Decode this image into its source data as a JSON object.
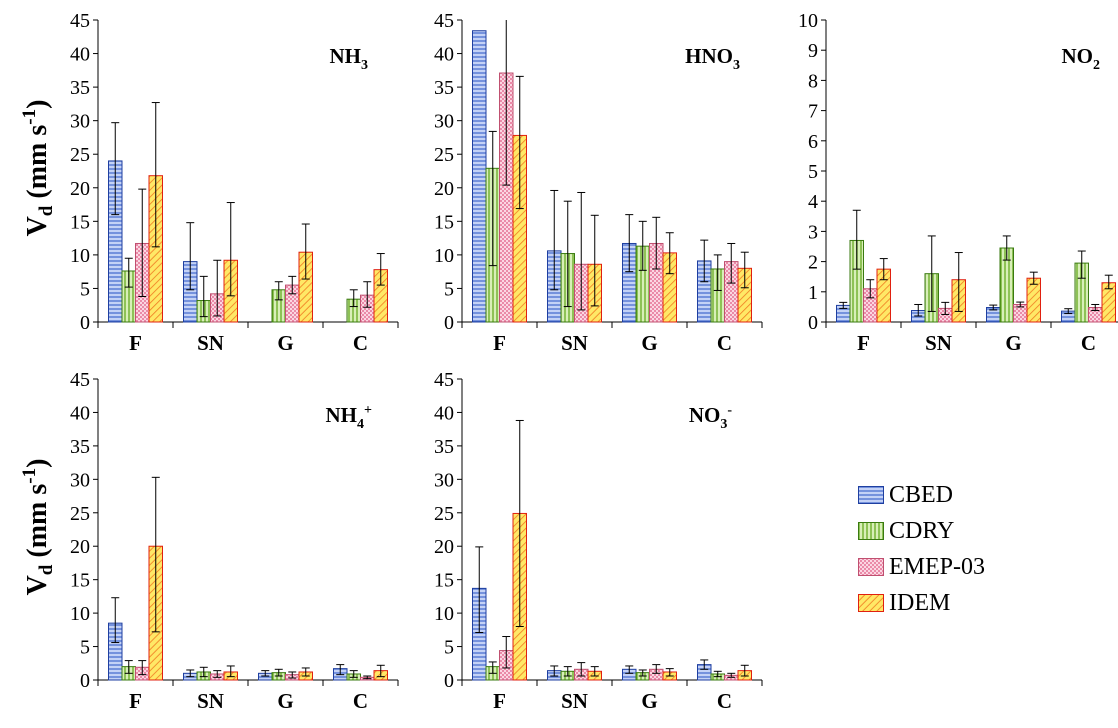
{
  "y_axis_label": {
    "main": "V",
    "sub": "d",
    "unit": " (mm s",
    "exp": "-1",
    "close": ")"
  },
  "legend": [
    {
      "name": "CBED",
      "color": "#4a70d0",
      "pattern": "hlines"
    },
    {
      "name": "CDRY",
      "color": "#66aa22",
      "pattern": "vlines"
    },
    {
      "name": "EMEP-03",
      "color": "#e07090",
      "pattern": "check"
    },
    {
      "name": "IDEM",
      "color": "#f03010",
      "pattern": "diag"
    }
  ],
  "chart_data": [
    {
      "type": "bar",
      "title_base": "NH",
      "title_sub": "3",
      "title_sup": "",
      "categories": [
        "F",
        "SN",
        "G",
        "C"
      ],
      "ylim": [
        0,
        45
      ],
      "yticks": [
        0,
        5,
        10,
        15,
        20,
        25,
        30,
        35,
        40,
        45
      ],
      "series": [
        {
          "name": "CBED",
          "values": [
            24.0,
            9.0,
            0,
            0
          ],
          "err_low": [
            16.0,
            4.8,
            0,
            0
          ],
          "err_high": [
            29.7,
            14.8,
            0,
            0
          ]
        },
        {
          "name": "CDRY",
          "values": [
            7.6,
            3.2,
            4.8,
            3.4
          ],
          "err_low": [
            5.2,
            0.8,
            3.3,
            2.3
          ],
          "err_high": [
            9.5,
            6.8,
            6.0,
            4.8
          ]
        },
        {
          "name": "EMEP-03",
          "values": [
            11.7,
            4.2,
            5.5,
            4.0
          ],
          "err_low": [
            3.8,
            0.9,
            4.2,
            2.2
          ],
          "err_high": [
            19.8,
            9.2,
            6.8,
            6.0
          ]
        },
        {
          "name": "IDEM",
          "values": [
            21.8,
            9.2,
            10.4,
            7.8
          ],
          "err_low": [
            11.2,
            3.9,
            6.4,
            5.5
          ],
          "err_high": [
            32.7,
            17.8,
            14.6,
            10.2
          ]
        }
      ]
    },
    {
      "type": "bar",
      "title_base": "HNO",
      "title_sub": "3",
      "title_sup": "",
      "categories": [
        "F",
        "SN",
        "G",
        "C"
      ],
      "ylim": [
        0,
        45
      ],
      "yticks": [
        0,
        5,
        10,
        15,
        20,
        25,
        30,
        35,
        40,
        45
      ],
      "series": [
        {
          "name": "CBED",
          "values": [
            43.4,
            10.6,
            11.7,
            9.1
          ],
          "err_low": [
            45,
            4.8,
            7.5,
            6.0
          ],
          "err_high": [
            45,
            19.6,
            16.0,
            12.2
          ]
        },
        {
          "name": "CDRY",
          "values": [
            22.9,
            10.2,
            11.3,
            7.9
          ],
          "err_low": [
            8.4,
            2.3,
            7.7,
            4.7
          ],
          "err_high": [
            28.4,
            18.0,
            15.0,
            10.0
          ]
        },
        {
          "name": "EMEP-03",
          "values": [
            37.1,
            8.6,
            11.7,
            9.0
          ],
          "err_low": [
            20.4,
            1.8,
            7.9,
            5.8
          ],
          "err_high": [
            45,
            19.3,
            15.6,
            11.7
          ]
        },
        {
          "name": "IDEM",
          "values": [
            27.8,
            8.6,
            10.3,
            8.0
          ],
          "err_low": [
            16.9,
            2.4,
            7.2,
            5.1
          ],
          "err_high": [
            36.6,
            15.9,
            13.3,
            10.4
          ]
        }
      ]
    },
    {
      "type": "bar",
      "title_base": "NO",
      "title_sub": "2",
      "title_sup": "",
      "categories": [
        "F",
        "SN",
        "G",
        "C"
      ],
      "ylim": [
        0,
        10
      ],
      "yticks": [
        0,
        1,
        2,
        3,
        4,
        5,
        6,
        7,
        8,
        9,
        10
      ],
      "series": [
        {
          "name": "CBED",
          "values": [
            0.55,
            0.38,
            0.48,
            0.36
          ],
          "err_low": [
            0.45,
            0.2,
            0.4,
            0.28
          ],
          "err_high": [
            0.65,
            0.58,
            0.56,
            0.44
          ]
        },
        {
          "name": "CDRY",
          "values": [
            2.7,
            1.6,
            2.45,
            1.95
          ],
          "err_low": [
            1.75,
            0.35,
            2.05,
            1.45
          ],
          "err_high": [
            3.7,
            2.85,
            2.85,
            2.35
          ]
        },
        {
          "name": "EMEP-03",
          "values": [
            1.1,
            0.45,
            0.58,
            0.48
          ],
          "err_low": [
            0.8,
            0.25,
            0.5,
            0.38
          ],
          "err_high": [
            1.4,
            0.65,
            0.66,
            0.58
          ]
        },
        {
          "name": "IDEM",
          "values": [
            1.75,
            1.4,
            1.45,
            1.3
          ],
          "err_low": [
            1.4,
            0.35,
            1.25,
            1.1
          ],
          "err_high": [
            2.1,
            2.3,
            1.65,
            1.55
          ]
        }
      ]
    },
    {
      "type": "bar",
      "title_base": "NH",
      "title_sub": "4",
      "title_sup": "+",
      "categories": [
        "F",
        "SN",
        "G",
        "C"
      ],
      "ylim": [
        0,
        45
      ],
      "yticks": [
        0,
        5,
        10,
        15,
        20,
        25,
        30,
        35,
        40,
        45
      ],
      "series": [
        {
          "name": "CBED",
          "values": [
            8.5,
            1.0,
            1.0,
            1.7
          ],
          "err_low": [
            5.6,
            0.5,
            0.6,
            0.8
          ],
          "err_high": [
            12.3,
            1.5,
            1.4,
            2.3
          ]
        },
        {
          "name": "CDRY",
          "values": [
            2.0,
            1.2,
            1.1,
            0.9
          ],
          "err_low": [
            1.0,
            0.5,
            0.6,
            0.4
          ],
          "err_high": [
            2.9,
            1.9,
            1.6,
            1.4
          ]
        },
        {
          "name": "EMEP-03",
          "values": [
            1.9,
            0.9,
            0.8,
            0.4
          ],
          "err_low": [
            0.8,
            0.4,
            0.3,
            0.2
          ],
          "err_high": [
            2.9,
            1.4,
            1.2,
            0.6
          ]
        },
        {
          "name": "IDEM",
          "values": [
            20.0,
            1.2,
            1.2,
            1.4
          ],
          "err_low": [
            7.2,
            0.5,
            0.6,
            0.5
          ],
          "err_high": [
            30.3,
            2.1,
            1.8,
            2.2
          ]
        }
      ]
    },
    {
      "type": "bar",
      "title_base": "NO",
      "title_sub": "3",
      "title_sup": "-",
      "categories": [
        "F",
        "SN",
        "G",
        "C"
      ],
      "ylim": [
        0,
        45
      ],
      "yticks": [
        0,
        5,
        10,
        15,
        20,
        25,
        30,
        35,
        40,
        45
      ],
      "series": [
        {
          "name": "CBED",
          "values": [
            13.7,
            1.4,
            1.6,
            2.3
          ],
          "err_low": [
            7.1,
            0.6,
            1.0,
            1.6
          ],
          "err_high": [
            19.9,
            2.1,
            2.1,
            3.0
          ]
        },
        {
          "name": "CDRY",
          "values": [
            2.0,
            1.3,
            1.1,
            0.9
          ],
          "err_low": [
            1.0,
            0.6,
            0.6,
            0.5
          ],
          "err_high": [
            2.7,
            2.0,
            1.5,
            1.3
          ]
        },
        {
          "name": "EMEP-03",
          "values": [
            4.4,
            1.6,
            1.6,
            0.7
          ],
          "err_low": [
            1.8,
            0.6,
            1.0,
            0.4
          ],
          "err_high": [
            6.5,
            2.6,
            2.3,
            1.0
          ]
        },
        {
          "name": "IDEM",
          "values": [
            24.9,
            1.3,
            1.2,
            1.4
          ],
          "err_low": [
            8.0,
            0.6,
            0.6,
            0.6
          ],
          "err_high": [
            38.8,
            2.0,
            1.7,
            2.2
          ]
        }
      ]
    }
  ]
}
